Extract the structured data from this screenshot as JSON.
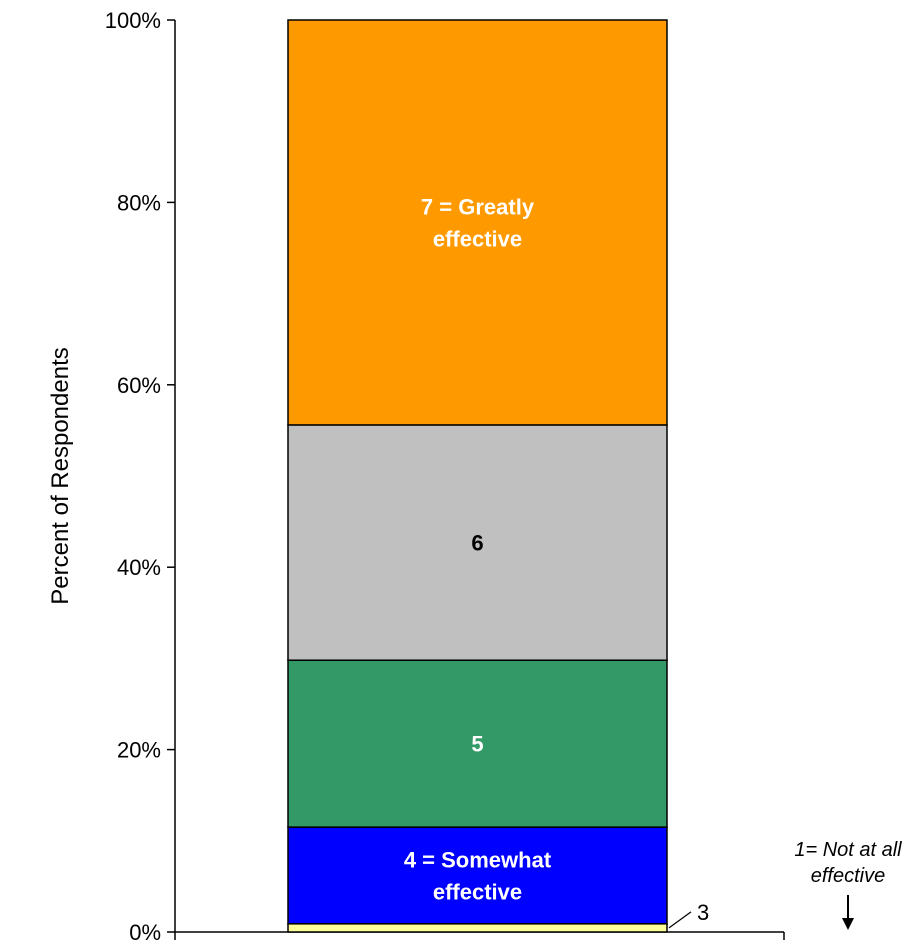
{
  "chart_data": {
    "type": "bar",
    "stacked": true,
    "ylabel": "Percent of Respondents",
    "ylim": [
      0,
      100
    ],
    "y_ticks": [
      "0%",
      "20%",
      "40%",
      "60%",
      "80%",
      "100%"
    ],
    "grid": false,
    "series": [
      {
        "name": "1= Not at all effective",
        "value": 0.0,
        "color": "#000000",
        "label_lines": [
          "1= Not at all",
          "effective"
        ]
      },
      {
        "name": "3",
        "value": 0.9,
        "color": "#FFFF99",
        "label_lines": [
          "3"
        ]
      },
      {
        "name": "4 = Somewhat effective",
        "value": 10.6,
        "color": "#0000FF",
        "label_lines": [
          "4 = Somewhat",
          "effective"
        ],
        "label_color": "#FFFFFF"
      },
      {
        "name": "5",
        "value": 18.3,
        "color": "#339966",
        "label_lines": [
          "5"
        ],
        "label_color": "#FFFFFF"
      },
      {
        "name": "6",
        "value": 25.8,
        "color": "#C0C0C0",
        "label_lines": [
          "6"
        ],
        "label_color": "#000000"
      },
      {
        "name": "7 = Greatly effective",
        "value": 44.4,
        "color": "#FF9900",
        "label_lines": [
          "7 = Greatly",
          "effective"
        ],
        "label_color": "#FFFFFF"
      }
    ]
  }
}
